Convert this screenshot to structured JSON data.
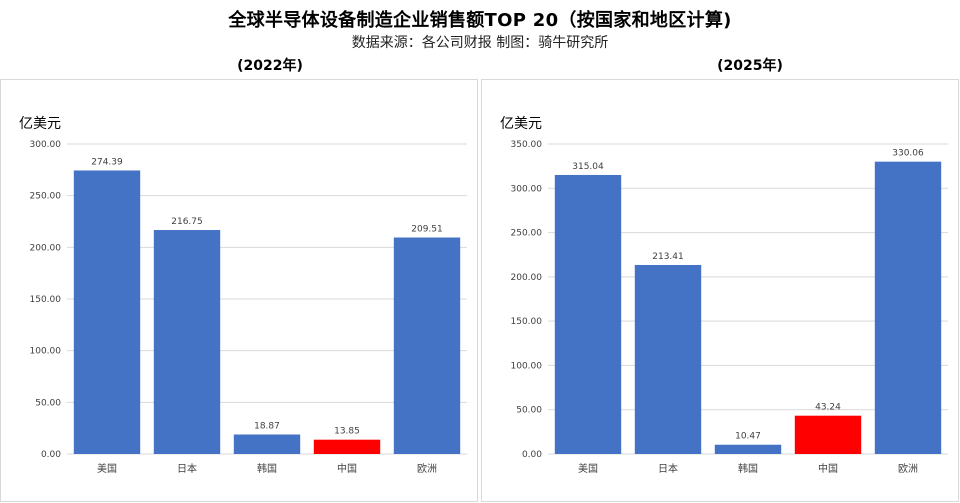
{
  "title": "全球半导体设备制造企业销售额TOP 20（按国家和地区计算)",
  "subtitle": "数据来源：各公司财报   制图：骑牛研究所",
  "colors": {
    "bar": "#4472c4",
    "highlight": "#ff0000",
    "grid": "#d9d9d9"
  },
  "chart_data": [
    {
      "type": "bar",
      "title": "(2022年)",
      "ylabel": "亿美元",
      "categories": [
        "美国",
        "日本",
        "韩国",
        "中国",
        "欧洲"
      ],
      "values": [
        274.39,
        216.75,
        18.87,
        13.85,
        209.51
      ],
      "value_labels": [
        "274.39",
        "216.75",
        "18.87",
        "13.85",
        "209.51"
      ],
      "highlight": "中国",
      "ylim": [
        0,
        300
      ],
      "yticks": [
        "0.00",
        "50.00",
        "100.00",
        "150.00",
        "200.00",
        "250.00",
        "300.00"
      ],
      "grid": true
    },
    {
      "type": "bar",
      "title": "(2025年)",
      "ylabel": "亿美元",
      "categories": [
        "美国",
        "日本",
        "韩国",
        "中国",
        "欧洲"
      ],
      "values": [
        315.04,
        213.41,
        10.47,
        43.24,
        330.06
      ],
      "value_labels": [
        "315.04",
        "213.41",
        "10.47",
        "43.24",
        "330.06"
      ],
      "highlight": "中国",
      "ylim": [
        0,
        350
      ],
      "yticks": [
        "0.00",
        "50.00",
        "100.00",
        "150.00",
        "200.00",
        "250.00",
        "300.00",
        "350.00"
      ],
      "grid": true
    }
  ]
}
